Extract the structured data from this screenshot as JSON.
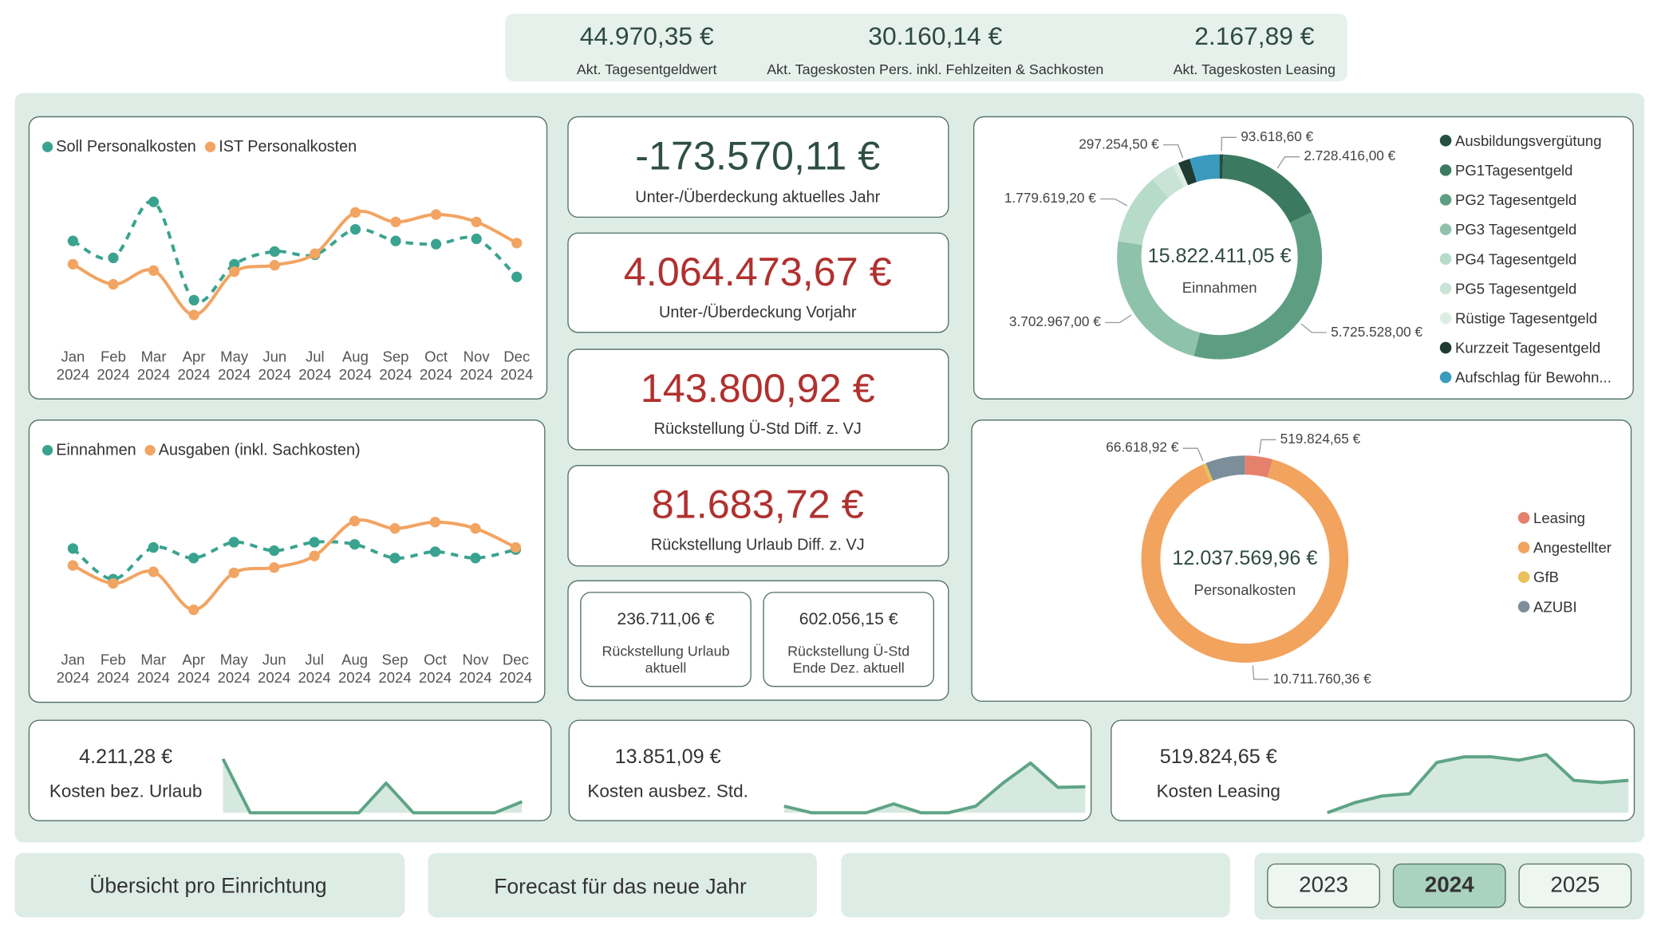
{
  "header_kpis": [
    {
      "value": "44.970,35 €",
      "label": "Akt. Tagesentgeldwert"
    },
    {
      "value": "30.160,14 €",
      "label": "Akt. Tageskosten Pers. inkl. Fehlzeiten & Sachkosten"
    },
    {
      "value": "2.167,89 €",
      "label": "Akt. Tageskosten Leasing"
    }
  ],
  "charts": [
    {
      "type": "line",
      "categories": [
        "Jan 2024",
        "Feb 2024",
        "Mar 2024",
        "Apr 2024",
        "May 2024",
        "Jun 2024",
        "Jul 2024",
        "Aug 2024",
        "Sep 2024",
        "Oct 2024",
        "Nov 2024",
        "Dec 2024"
      ],
      "series": [
        {
          "name": "Soll Personalkosten",
          "color": "#3aa38f",
          "dashed": true,
          "values": [
            1110000,
            1030000,
            1295000,
            830000,
            1000000,
            1060000,
            1045000,
            1165000,
            1110000,
            1095000,
            1120000,
            940000
          ]
        },
        {
          "name": "IST Personalkosten",
          "color": "#f2a462",
          "dashed": false,
          "values": [
            1000000,
            905000,
            970000,
            760000,
            965000,
            995000,
            1050000,
            1245000,
            1200000,
            1235000,
            1200000,
            1100000
          ]
        }
      ]
    },
    {
      "type": "line",
      "categories": [
        "Jan 2024",
        "Feb 2024",
        "Mar 2024",
        "Apr 2024",
        "May 2024",
        "Jun 2024",
        "Jul 2024",
        "Aug 2024",
        "Sep 2024",
        "Oct 2024",
        "Nov 2024",
        "Dec 2024"
      ],
      "series": [
        {
          "name": "Einnahmen",
          "color": "#3aa38f",
          "dashed": true,
          "values": [
            1306000,
            1132000,
            1312000,
            1252000,
            1342000,
            1294000,
            1342000,
            1330000,
            1252000,
            1288000,
            1252000,
            1300000
          ]
        },
        {
          "name": "Ausgaben (inkl. Sachkosten)",
          "color": "#f2a462",
          "dashed": false,
          "values": [
            1210000,
            1108000,
            1174000,
            958000,
            1168000,
            1198000,
            1264000,
            1462000,
            1420000,
            1456000,
            1420000,
            1312000
          ]
        }
      ]
    }
  ],
  "cards": [
    {
      "value": "-173.570,11 €",
      "label": "Unter-/Überdeckung aktuelles Jahr"
    },
    {
      "value": "4.064.473,67 €",
      "label": "Unter-/Überdeckung Vorjahr"
    },
    {
      "value": "143.800,92 €",
      "label": "Rückstellung Ü-Std Diff. z. VJ"
    },
    {
      "value": "81.683,72 €",
      "label": "Rückstellung Urlaub Diff. z. VJ"
    }
  ],
  "small_cards": [
    {
      "value": "236.711,06 €",
      "label": "Rückstellung Urlaub aktuell"
    },
    {
      "value": "602.056,15 €",
      "label": "Rückstellung Ü-Std Ende Dez. aktuell"
    }
  ],
  "donuts": [
    {
      "type": "donut",
      "center_value": "15.822.411,05 €",
      "center_label": "Einnahmen",
      "categories": [
        "Ausbildungsvergütung",
        "PG1Tagesentgeld",
        "PG2 Tagesentgeld",
        "PG3 Tagesentgeld",
        "PG4 Tagesentgeld",
        "PG5 Tagesentgeld",
        "Rüstige Tagesentgeld",
        "Kurzzeit Tagesentgeld",
        "Aufschlag für Bewohn..."
      ],
      "colors": [
        "#24503f",
        "#3b7a60",
        "#5d9e82",
        "#8fc2aa",
        "#b7dbc9",
        "#c9e4d6",
        "#dcede4",
        "#1f3a31",
        "#3a9bbf"
      ],
      "values": [
        93618.6,
        2728416,
        5725528,
        3702967,
        1779619.2,
        600000,
        150000,
        297254.5,
        745007.75
      ],
      "value_labels": [
        "93.618,60 €",
        "2.728.416,00 €",
        "5.725.528,00 €",
        "3.702.967,00 €",
        "1.779.619,20 €",
        null,
        null,
        "297.254,50 €",
        null
      ]
    },
    {
      "type": "donut",
      "center_value": "12.037.569,96 €",
      "center_label": "Personalkosten",
      "categories": [
        "Leasing",
        "Angestellter",
        "GfB",
        "AZUBI"
      ],
      "colors": [
        "#e5806c",
        "#f2a35e",
        "#e8c15a",
        "#7b8e99"
      ],
      "values": [
        519824.65,
        10711760.36,
        66618.92,
        739366.03
      ],
      "value_labels": [
        "519.824,65 €",
        "10.711.760,36 €",
        "66.618,92 €",
        null
      ]
    }
  ],
  "sparklines": [
    {
      "type": "area",
      "value": "4.211,28 €",
      "label": "Kosten bez. Urlaub",
      "color": "#5fa487",
      "values": [
        2400,
        0,
        0,
        0,
        0,
        0,
        1320,
        0,
        0,
        0,
        0,
        491.28
      ]
    },
    {
      "type": "area",
      "value": "13.851,09 €",
      "label": "Kosten ausbez. Std.",
      "color": "#5fa487",
      "values": [
        600,
        0,
        0,
        0,
        800,
        0,
        0,
        600,
        2700,
        4500,
        2300,
        2351.09
      ]
    },
    {
      "type": "area",
      "value": "519.824,65 €",
      "label": "Kosten Leasing",
      "color": "#5fa487",
      "values": [
        2640,
        14510,
        22430,
        25070,
        62010,
        68610,
        68610,
        64650,
        71250,
        40900,
        38260,
        40884.65
      ]
    }
  ],
  "buttons": [
    "Übersicht pro Einrichtung",
    "Forecast für das neue Jahr"
  ],
  "year_slicer": {
    "options": [
      "2023",
      "2024",
      "2025"
    ],
    "selected": "2024"
  }
}
